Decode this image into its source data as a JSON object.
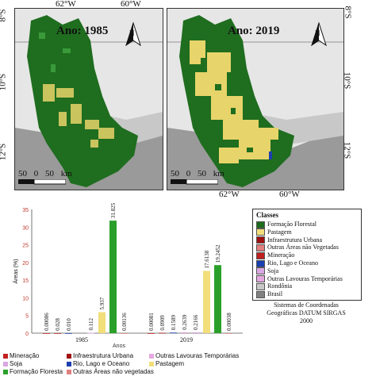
{
  "map_coords": {
    "top_left_a": "62°W",
    "top_left_b": "60°W",
    "bottom_a": "62°W",
    "bottom_b": "60°W",
    "lat_8": "8°S",
    "lat_10": "10°S",
    "lat_12": "12°S"
  },
  "map_1985": {
    "title": "Ano: 1985",
    "scale": "50 0 50 km"
  },
  "map_2019": {
    "title": "Ano: 2019",
    "scale": "50 0 50 km"
  },
  "north_label": "N",
  "legend": {
    "title": "Classes",
    "items": [
      {
        "label": "Formação Florestal",
        "color": "#1e6b1e"
      },
      {
        "label": "Pastagem",
        "color": "#f2de7a"
      },
      {
        "label": "Infraestrutura Urbana",
        "color": "#a01010"
      },
      {
        "label": "Outras Áreas não Vegetadas",
        "color": "#e08080"
      },
      {
        "label": "Mineração",
        "color": "#c02020"
      },
      {
        "label": "Rio, Lago e Oceano",
        "color": "#1a3fb0"
      },
      {
        "label": "Soja",
        "color": "#d9a8e0"
      },
      {
        "label": "Outras Lavouras Temporárias",
        "color": "#e6a8e0"
      },
      {
        "label": "Rondônia",
        "color": "#c8c8c8"
      },
      {
        "label": "Brasil",
        "color": "#808080"
      }
    ]
  },
  "crs_text": [
    "Sistemas de Coordenadas",
    "Geográficas DATUM SIRGAS",
    "2000"
  ],
  "chart_data": {
    "type": "bar",
    "ylabel": "Áreas (%)",
    "xlabel": "Anos",
    "ylim": [
      0,
      35
    ],
    "yticks": [
      "0",
      "5",
      "10",
      "15",
      "20",
      "25",
      "30",
      "35"
    ],
    "categories": [
      "1985",
      "2019"
    ],
    "series": [
      {
        "name": "Mineração",
        "color": "#c02020",
        "values": [
          0.00086,
          0.00081
        ],
        "labels": [
          "0.00086",
          "0.00081"
        ]
      },
      {
        "name": "Infraestrutura Urbana",
        "color": "#a01010",
        "values": [
          0.028,
          0.0909
        ],
        "labels": [
          "0.028",
          "0.0909"
        ]
      },
      {
        "name": "Rio, Lago e Oceano",
        "color": "#1a3fb0",
        "values": [
          0.01,
          0.1589
        ],
        "labels": [
          "0.010",
          "0.1589"
        ]
      },
      {
        "name": "Outras Lavouras Temporárias",
        "color": "#e6a8e0",
        "values": [
          0,
          0.2639
        ],
        "labels": [
          "",
          "0.2639"
        ]
      },
      {
        "name": "Soja",
        "color": "#d9a8e0",
        "values": [
          0.112,
          0.2166
        ],
        "labels": [
          "0.112",
          "0.2166"
        ]
      },
      {
        "name": "Pastagem",
        "color": "#f2de7a",
        "values": [
          5.937,
          17.6138
        ],
        "labels": [
          "5.937",
          "17.6138"
        ]
      },
      {
        "name": "Formação Floresta",
        "color": "#2aa02a",
        "values": [
          31.825,
          19.2452
        ],
        "labels": [
          "31.825",
          "19.2452"
        ]
      },
      {
        "name": "Outras Áreas não vegetadas",
        "color": "#e08080",
        "values": [
          0.00136,
          0.00038
        ],
        "labels": [
          "0.00136",
          "0.00038"
        ]
      }
    ]
  }
}
